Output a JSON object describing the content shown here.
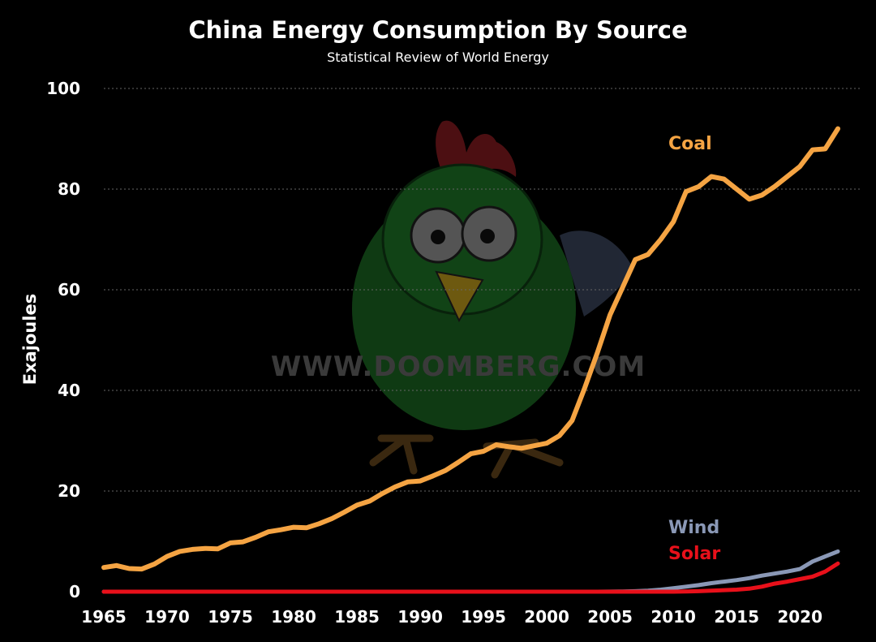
{
  "chart_data": {
    "type": "line",
    "title": "China Energy Consumption By Source",
    "subtitle": "Statistical Review of World Energy",
    "ylabel": "Exajoules",
    "xlabel": "",
    "xlim": [
      1965,
      2023
    ],
    "ylim": [
      0,
      100
    ],
    "x_ticks": [
      1965,
      1970,
      1975,
      1980,
      1985,
      1990,
      1995,
      2000,
      2005,
      2010,
      2015,
      2020
    ],
    "y_ticks": [
      0,
      20,
      40,
      60,
      80,
      100
    ],
    "grid": true,
    "watermark": "WWW.DOOMBERG.COM",
    "x": [
      1965,
      1966,
      1967,
      1968,
      1969,
      1970,
      1971,
      1972,
      1973,
      1974,
      1975,
      1976,
      1977,
      1978,
      1979,
      1980,
      1981,
      1982,
      1983,
      1984,
      1985,
      1986,
      1987,
      1988,
      1989,
      1990,
      1991,
      1992,
      1993,
      1994,
      1995,
      1996,
      1997,
      1998,
      1999,
      2000,
      2001,
      2002,
      2003,
      2004,
      2005,
      2006,
      2007,
      2008,
      2009,
      2010,
      2011,
      2012,
      2013,
      2014,
      2015,
      2016,
      2017,
      2018,
      2019,
      2020,
      2021,
      2022,
      2023
    ],
    "series": [
      {
        "name": "Coal",
        "color": "#F5A443",
        "values": [
          4.8,
          5.2,
          4.6,
          4.5,
          5.5,
          7.0,
          8.0,
          8.4,
          8.6,
          8.5,
          9.7,
          9.9,
          10.8,
          11.9,
          12.3,
          12.8,
          12.7,
          13.5,
          14.5,
          15.8,
          17.2,
          18.0,
          19.5,
          20.8,
          21.8,
          22.0,
          23.0,
          24.1,
          25.7,
          27.4,
          27.9,
          29.2,
          28.8,
          28.5,
          29.0,
          29.5,
          31.0,
          34.0,
          40.5,
          47.5,
          55.0,
          60.5,
          66.0,
          67.0,
          70.0,
          73.5,
          79.5,
          80.5,
          82.5,
          82.0,
          80.0,
          78.0,
          78.8,
          80.5,
          82.5,
          84.5,
          87.8,
          88.0,
          92.0
        ]
      },
      {
        "name": "Wind",
        "color": "#8A98B6",
        "values": [
          0,
          0,
          0,
          0,
          0,
          0,
          0,
          0,
          0,
          0,
          0,
          0,
          0,
          0,
          0,
          0,
          0,
          0,
          0,
          0,
          0,
          0,
          0,
          0,
          0,
          0,
          0,
          0,
          0,
          0,
          0,
          0,
          0,
          0,
          0,
          0,
          0,
          0,
          0,
          0,
          0.02,
          0.05,
          0.1,
          0.2,
          0.4,
          0.7,
          1.0,
          1.3,
          1.7,
          2.0,
          2.3,
          2.7,
          3.2,
          3.6,
          4.0,
          4.5,
          6.0,
          7.0,
          8.0
        ]
      },
      {
        "name": "Solar",
        "color": "#E8101A",
        "values": [
          0,
          0,
          0,
          0,
          0,
          0,
          0,
          0,
          0,
          0,
          0,
          0,
          0,
          0,
          0,
          0,
          0,
          0,
          0,
          0,
          0,
          0,
          0,
          0,
          0,
          0,
          0,
          0,
          0,
          0,
          0,
          0,
          0,
          0,
          0,
          0,
          0,
          0,
          0,
          0,
          0,
          0,
          0,
          0,
          0,
          0,
          0.05,
          0.1,
          0.2,
          0.3,
          0.4,
          0.6,
          1.0,
          1.6,
          2.0,
          2.5,
          3.0,
          4.0,
          5.6
        ]
      }
    ]
  }
}
